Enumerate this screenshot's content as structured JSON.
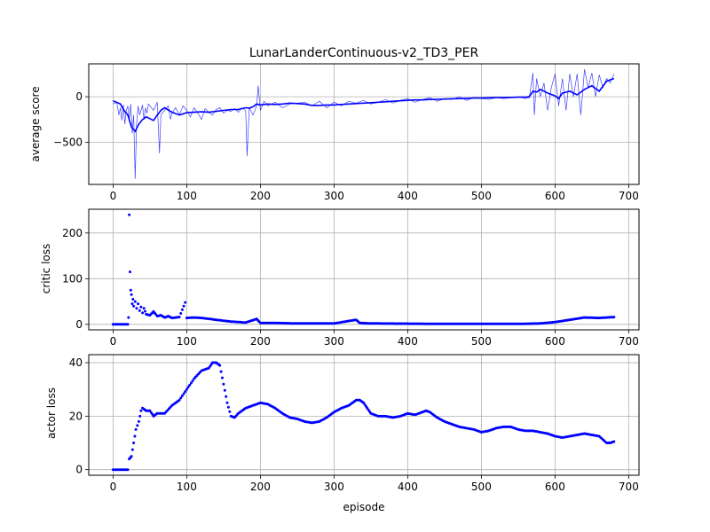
{
  "chart_data": [
    {
      "type": "line",
      "title": "LunarLanderContinuous-v2_TD3_PER",
      "xlabel": "",
      "ylabel": "average score",
      "xlim": [
        -33,
        714
      ],
      "ylim": [
        -960,
        360
      ],
      "xticks": [
        0,
        100,
        200,
        300,
        400,
        500,
        600,
        700
      ],
      "yticks": [
        -500,
        0
      ],
      "grid": true,
      "color": "#0000ff",
      "series": [
        {
          "style": "raw-thin",
          "x": [
            0,
            5,
            8,
            10,
            12,
            14,
            16,
            18,
            20,
            22,
            24,
            26,
            28,
            30,
            32,
            34,
            36,
            38,
            40,
            42,
            44,
            46,
            48,
            50,
            55,
            60,
            63,
            65,
            70,
            75,
            78,
            80,
            85,
            90,
            95,
            100,
            105,
            110,
            115,
            120,
            125,
            130,
            135,
            140,
            145,
            150,
            155,
            160,
            165,
            170,
            175,
            180,
            182,
            185,
            190,
            195,
            197,
            200,
            205,
            210,
            220,
            230,
            240,
            250,
            260,
            270,
            280,
            290,
            300,
            310,
            320,
            330,
            340,
            350,
            360,
            370,
            380,
            390,
            400,
            410,
            420,
            430,
            440,
            450,
            460,
            470,
            480,
            490,
            500,
            510,
            520,
            530,
            540,
            550,
            560,
            565,
            570,
            572,
            575,
            580,
            585,
            590,
            595,
            600,
            605,
            610,
            615,
            620,
            625,
            630,
            635,
            640,
            645,
            650,
            655,
            660,
            665,
            670,
            675,
            680
          ],
          "y": [
            -80,
            -60,
            -200,
            -120,
            -260,
            -90,
            -300,
            -150,
            -100,
            -250,
            -80,
            -400,
            -200,
            -900,
            -300,
            -100,
            -200,
            -150,
            -90,
            -250,
            -120,
            -180,
            -80,
            -100,
            -150,
            -60,
            -620,
            -200,
            -150,
            -100,
            -250,
            -180,
            -120,
            -200,
            -100,
            -150,
            -220,
            -120,
            -180,
            -250,
            -130,
            -170,
            -200,
            -140,
            -120,
            -180,
            -150,
            -160,
            -130,
            -170,
            -120,
            -150,
            -650,
            -120,
            -200,
            -100,
            120,
            -150,
            -50,
            -100,
            -60,
            -120,
            -80,
            -70,
            -60,
            -100,
            -50,
            -120,
            -60,
            -100,
            -50,
            -70,
            -40,
            -80,
            -60,
            -30,
            -70,
            -40,
            -20,
            -60,
            -30,
            -10,
            -50,
            -20,
            -30,
            0,
            -40,
            -10,
            -20,
            -30,
            -10,
            -20,
            -10,
            0,
            -20,
            -10,
            260,
            -200,
            200,
            0,
            150,
            -150,
            100,
            250,
            -100,
            200,
            -150,
            250,
            0,
            250,
            -200,
            300,
            100,
            260,
            0,
            240,
            100,
            200,
            150,
            250
          ]
        },
        {
          "style": "smoothed-thick",
          "x": [
            0,
            10,
            15,
            20,
            25,
            30,
            35,
            40,
            45,
            50,
            55,
            60,
            65,
            70,
            80,
            90,
            100,
            110,
            120,
            130,
            140,
            150,
            160,
            170,
            180,
            185,
            190,
            195,
            200,
            210,
            220,
            230,
            240,
            250,
            260,
            270,
            280,
            290,
            300,
            310,
            320,
            330,
            340,
            350,
            360,
            370,
            380,
            390,
            400,
            410,
            420,
            430,
            440,
            450,
            460,
            470,
            480,
            490,
            500,
            510,
            520,
            530,
            540,
            550,
            560,
            565,
            570,
            575,
            580,
            590,
            600,
            605,
            610,
            620,
            630,
            640,
            650,
            660,
            670,
            680
          ],
          "y": [
            -45,
            -80,
            -150,
            -200,
            -330,
            -380,
            -300,
            -250,
            -220,
            -240,
            -260,
            -200,
            -150,
            -120,
            -170,
            -200,
            -175,
            -170,
            -165,
            -170,
            -160,
            -150,
            -140,
            -140,
            -120,
            -125,
            -110,
            -80,
            -90,
            -80,
            -85,
            -80,
            -70,
            -75,
            -80,
            -95,
            -95,
            -90,
            -90,
            -85,
            -80,
            -75,
            -70,
            -65,
            -60,
            -55,
            -50,
            -45,
            -40,
            -35,
            -35,
            -30,
            -28,
            -25,
            -22,
            -20,
            -18,
            -15,
            -15,
            -12,
            -10,
            -10,
            -8,
            -5,
            -5,
            0,
            60,
            50,
            80,
            40,
            10,
            -20,
            40,
            60,
            20,
            80,
            120,
            60,
            170,
            200
          ]
        }
      ]
    },
    {
      "type": "scatter",
      "title": "",
      "xlabel": "",
      "ylabel": "critic loss",
      "xlim": [
        -33,
        714
      ],
      "ylim": [
        -12,
        252
      ],
      "xticks": [
        0,
        100,
        200,
        300,
        400,
        500,
        600,
        700
      ],
      "yticks": [
        0,
        100,
        200
      ],
      "grid": true,
      "color": "#0000ff",
      "series": [
        {
          "keypoints": [
            [
              0,
              0
            ],
            [
              20,
              0
            ],
            [
              21,
              15
            ],
            [
              22,
              240
            ],
            [
              23,
              115
            ],
            [
              24,
              75
            ],
            [
              25,
              65
            ],
            [
              26,
              45
            ],
            [
              27,
              55
            ],
            [
              28,
              40
            ],
            [
              30,
              50
            ],
            [
              32,
              35
            ],
            [
              34,
              45
            ],
            [
              36,
              30
            ],
            [
              38,
              38
            ],
            [
              40,
              25
            ],
            [
              42,
              35
            ],
            [
              45,
              22
            ],
            [
              50,
              20
            ],
            [
              55,
              28
            ],
            [
              60,
              18
            ],
            [
              65,
              20
            ],
            [
              70,
              15
            ],
            [
              75,
              18
            ],
            [
              80,
              14
            ],
            [
              90,
              16
            ],
            [
              98,
              48
            ],
            [
              100,
              14
            ],
            [
              110,
              15
            ],
            [
              120,
              14
            ],
            [
              130,
              12
            ],
            [
              140,
              10
            ],
            [
              150,
              8
            ],
            [
              160,
              6
            ],
            [
              170,
              5
            ],
            [
              180,
              4
            ],
            [
              195,
              12
            ],
            [
              200,
              3
            ],
            [
              220,
              3
            ],
            [
              250,
              2
            ],
            [
              300,
              2
            ],
            [
              330,
              10
            ],
            [
              335,
              3
            ],
            [
              350,
              2
            ],
            [
              400,
              1.5
            ],
            [
              450,
              1
            ],
            [
              500,
              1
            ],
            [
              550,
              1
            ],
            [
              580,
              2
            ],
            [
              600,
              5
            ],
            [
              620,
              10
            ],
            [
              640,
              15
            ],
            [
              660,
              14
            ],
            [
              680,
              16
            ]
          ]
        }
      ]
    },
    {
      "type": "scatter",
      "title": "",
      "xlabel": "episode",
      "ylabel": "actor loss",
      "xlim": [
        -33,
        714
      ],
      "ylim": [
        -2.1,
        43
      ],
      "xticks": [
        0,
        100,
        200,
        300,
        400,
        500,
        600,
        700
      ],
      "yticks": [
        0,
        20,
        40
      ],
      "grid": true,
      "color": "#0000ff",
      "series": [
        {
          "keypoints": [
            [
              0,
              0
            ],
            [
              20,
              0
            ],
            [
              22,
              4
            ],
            [
              25,
              5
            ],
            [
              28,
              10
            ],
            [
              31,
              15
            ],
            [
              35,
              18
            ],
            [
              38,
              22
            ],
            [
              40,
              23
            ],
            [
              45,
              22
            ],
            [
              50,
              22
            ],
            [
              55,
              20
            ],
            [
              60,
              21
            ],
            [
              70,
              21
            ],
            [
              80,
              24
            ],
            [
              90,
              26
            ],
            [
              100,
              30
            ],
            [
              110,
              34
            ],
            [
              120,
              37
            ],
            [
              130,
              38
            ],
            [
              135,
              40
            ],
            [
              140,
              40
            ],
            [
              145,
              39
            ],
            [
              150,
              32
            ],
            [
              155,
              25
            ],
            [
              160,
              20
            ],
            [
              165,
              19.5
            ],
            [
              170,
              21
            ],
            [
              180,
              23
            ],
            [
              190,
              24
            ],
            [
              200,
              25
            ],
            [
              210,
              24.5
            ],
            [
              220,
              23
            ],
            [
              230,
              21
            ],
            [
              240,
              19.5
            ],
            [
              250,
              19
            ],
            [
              260,
              18
            ],
            [
              270,
              17.5
            ],
            [
              280,
              18
            ],
            [
              290,
              19.5
            ],
            [
              300,
              21.5
            ],
            [
              310,
              23
            ],
            [
              320,
              24
            ],
            [
              330,
              26
            ],
            [
              335,
              26
            ],
            [
              340,
              25
            ],
            [
              345,
              23
            ],
            [
              350,
              21
            ],
            [
              360,
              20
            ],
            [
              370,
              20
            ],
            [
              380,
              19.5
            ],
            [
              390,
              20
            ],
            [
              400,
              21
            ],
            [
              410,
              20.5
            ],
            [
              420,
              21.5
            ],
            [
              425,
              22
            ],
            [
              430,
              21.5
            ],
            [
              440,
              19.5
            ],
            [
              450,
              18
            ],
            [
              460,
              17
            ],
            [
              470,
              16
            ],
            [
              480,
              15.5
            ],
            [
              490,
              15
            ],
            [
              500,
              14
            ],
            [
              510,
              14.5
            ],
            [
              520,
              15.5
            ],
            [
              530,
              16
            ],
            [
              540,
              16
            ],
            [
              550,
              15
            ],
            [
              560,
              14.5
            ],
            [
              570,
              14.5
            ],
            [
              580,
              14
            ],
            [
              590,
              13.5
            ],
            [
              600,
              12.5
            ],
            [
              610,
              12
            ],
            [
              620,
              12.5
            ],
            [
              630,
              13
            ],
            [
              640,
              13.5
            ],
            [
              650,
              13
            ],
            [
              660,
              12.5
            ],
            [
              670,
              10
            ],
            [
              675,
              10
            ],
            [
              680,
              10.5
            ]
          ]
        }
      ]
    }
  ]
}
